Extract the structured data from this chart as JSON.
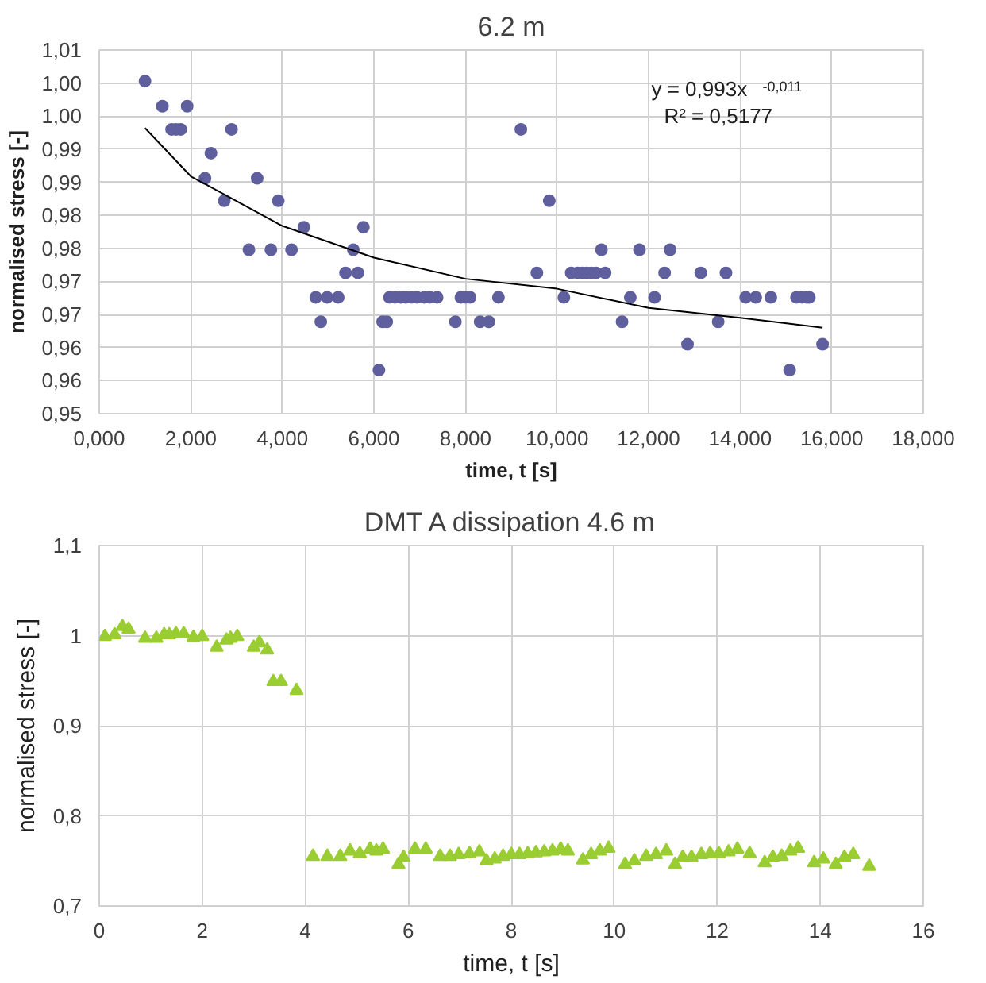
{
  "chart_data": [
    {
      "type": "scatter",
      "title": "6.2 m",
      "xlabel": "time, t [s]",
      "ylabel": "normalised stress [-]",
      "xlim": [
        0,
        18
      ],
      "ylim": [
        0.95,
        1.005
      ],
      "xticks": [
        {
          "value": 0,
          "label": "0,000"
        },
        {
          "value": 2,
          "label": "2,000"
        },
        {
          "value": 4,
          "label": "4,000"
        },
        {
          "value": 6,
          "label": "6,000"
        },
        {
          "value": 8,
          "label": "8,000"
        },
        {
          "value": 10,
          "label": "10,000"
        },
        {
          "value": 12,
          "label": "12,000"
        },
        {
          "value": 14,
          "label": "14,000"
        },
        {
          "value": 16,
          "label": "16,000"
        },
        {
          "value": 18,
          "label": "18,000"
        }
      ],
      "yticks": [
        {
          "value": 0.95,
          "label": "0,95"
        },
        {
          "value": 0.955,
          "label": "0,96"
        },
        {
          "value": 0.96,
          "label": "0,96"
        },
        {
          "value": 0.965,
          "label": "0,97"
        },
        {
          "value": 0.97,
          "label": "0,97"
        },
        {
          "value": 0.975,
          "label": "0,98"
        },
        {
          "value": 0.98,
          "label": "0,98"
        },
        {
          "value": 0.985,
          "label": "0,99"
        },
        {
          "value": 0.99,
          "label": "0,99"
        },
        {
          "value": 0.995,
          "label": "1,00"
        },
        {
          "value": 1.0,
          "label": "1,00"
        },
        {
          "value": 1.005,
          "label": "1,01"
        }
      ],
      "grid": true,
      "marker": "circle",
      "annotations": [
        "y = 0,993x$^{-0,011}$",
        "R² = 0,5177"
      ],
      "series": [
        {
          "color": "#5f5f9e",
          "x": [
            1.0,
            1.38,
            1.58,
            1.68,
            1.78,
            1.92,
            2.31,
            2.44,
            2.73,
            2.89,
            3.27,
            3.45,
            3.75,
            3.91,
            4.2,
            4.47,
            4.73,
            4.84,
            4.98,
            5.22,
            5.38,
            5.55,
            5.65,
            5.77,
            6.11,
            6.19,
            6.28,
            6.34,
            6.46,
            6.58,
            6.7,
            6.82,
            6.94,
            7.1,
            7.22,
            7.38,
            7.78,
            7.9,
            8.0,
            8.1,
            8.32,
            8.51,
            8.72,
            9.21,
            9.56,
            9.83,
            10.15,
            10.31,
            10.45,
            10.55,
            10.65,
            10.75,
            10.85,
            10.97,
            11.05,
            11.42,
            11.6,
            11.8,
            12.13,
            12.35,
            12.47,
            12.85,
            13.14,
            13.52,
            13.69,
            14.12,
            14.34,
            14.67,
            15.08,
            15.23,
            15.35,
            15.45,
            15.51,
            15.8
          ],
          "values": [
            1.0003,
            0.9965,
            0.993,
            0.993,
            0.993,
            0.9965,
            0.9856,
            0.9894,
            0.9822,
            0.993,
            0.9748,
            0.9856,
            0.9748,
            0.9822,
            0.9748,
            0.9782,
            0.9676,
            0.9639,
            0.9676,
            0.9676,
            0.9713,
            0.9748,
            0.9713,
            0.9782,
            0.9566,
            0.9639,
            0.9639,
            0.9676,
            0.9676,
            0.9676,
            0.9676,
            0.9676,
            0.9676,
            0.9676,
            0.9676,
            0.9676,
            0.9639,
            0.9676,
            0.9676,
            0.9676,
            0.9639,
            0.9639,
            0.9676,
            0.993,
            0.9713,
            0.9822,
            0.9676,
            0.9713,
            0.9713,
            0.9713,
            0.9713,
            0.9713,
            0.9713,
            0.9748,
            0.9713,
            0.9639,
            0.9676,
            0.9748,
            0.9676,
            0.9713,
            0.9748,
            0.9605,
            0.9713,
            0.9639,
            0.9713,
            0.9676,
            0.9676,
            0.9676,
            0.9566,
            0.9676,
            0.9676,
            0.9676,
            0.9676,
            0.9605
          ]
        },
        {
          "type": "line",
          "marker": "none",
          "color": "#000000",
          "x": [
            1,
            2,
            4,
            6,
            8,
            10,
            12,
            14,
            15.8
          ],
          "values": [
            0.9932,
            0.9859,
            0.9784,
            0.9736,
            0.9704,
            0.9689,
            0.966,
            0.9645,
            0.963
          ]
        }
      ]
    },
    {
      "type": "scatter",
      "title": "DMT A dissipation 4.6 m",
      "xlabel": "time, t [s]",
      "ylabel": "normalised stress [-]",
      "xlim": [
        0,
        16
      ],
      "ylim": [
        0.7,
        1.1
      ],
      "xticks": [
        0,
        2,
        4,
        6,
        8,
        10,
        12,
        14,
        16
      ],
      "yticks": [
        {
          "value": 0.7,
          "label": "0,7"
        },
        {
          "value": 0.8,
          "label": "0,8"
        },
        {
          "value": 0.9,
          "label": "0,9"
        },
        1,
        {
          "value": 1.1,
          "label": "1,1"
        }
      ],
      "grid": true,
      "marker": "triangle",
      "series": [
        {
          "color": "#9acd32",
          "x": [
            0.11,
            0.3,
            0.45,
            0.57,
            0.89,
            1.11,
            1.26,
            1.36,
            1.49,
            1.64,
            1.83,
            2.0,
            2.28,
            2.47,
            2.55,
            2.68,
            3.0,
            3.11,
            3.26,
            3.38,
            3.53,
            3.83,
            4.15,
            4.43,
            4.68,
            4.87,
            5.06,
            5.26,
            5.38,
            5.51,
            5.81,
            5.91,
            6.13,
            6.34,
            6.62,
            6.81,
            6.98,
            7.19,
            7.38,
            7.52,
            7.68,
            7.84,
            8.0,
            8.16,
            8.32,
            8.48,
            8.64,
            8.8,
            8.96,
            9.1,
            9.39,
            9.55,
            9.72,
            9.89,
            10.21,
            10.39,
            10.62,
            10.81,
            11.01,
            11.18,
            11.33,
            11.5,
            11.69,
            11.86,
            12.03,
            12.22,
            12.39,
            12.63,
            12.92,
            13.08,
            13.25,
            13.42,
            13.57,
            13.88,
            14.06,
            14.3,
            14.47,
            14.64,
            14.95
          ],
          "values": [
            0.999,
            1.001,
            1.01,
            1.007,
            0.997,
            0.997,
            1.001,
            1.001,
            1.002,
            1.002,
            0.998,
            0.999,
            0.987,
            0.995,
            0.997,
            0.999,
            0.987,
            0.992,
            0.984,
            0.949,
            0.949,
            0.939,
            0.755,
            0.755,
            0.755,
            0.761,
            0.758,
            0.763,
            0.761,
            0.763,
            0.746,
            0.754,
            0.763,
            0.763,
            0.755,
            0.755,
            0.757,
            0.758,
            0.76,
            0.75,
            0.752,
            0.755,
            0.757,
            0.757,
            0.758,
            0.759,
            0.76,
            0.761,
            0.763,
            0.761,
            0.751,
            0.757,
            0.761,
            0.764,
            0.746,
            0.75,
            0.755,
            0.757,
            0.761,
            0.746,
            0.754,
            0.754,
            0.757,
            0.758,
            0.758,
            0.76,
            0.763,
            0.758,
            0.748,
            0.754,
            0.755,
            0.761,
            0.764,
            0.748,
            0.752,
            0.746,
            0.754,
            0.757,
            0.744
          ]
        }
      ]
    }
  ]
}
